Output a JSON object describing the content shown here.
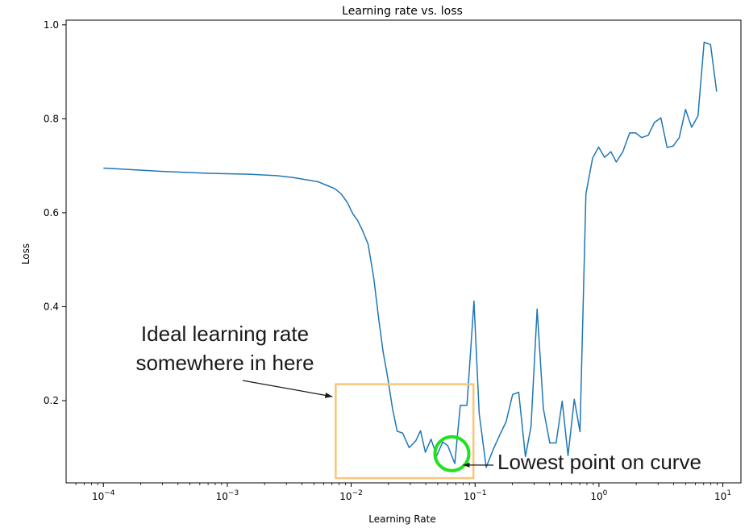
{
  "chart_data": {
    "type": "line",
    "title": "Learning rate vs. loss",
    "xlabel": "Learning Rate",
    "ylabel": "Loss",
    "xscale": "log",
    "xlim": [
      5e-05,
      14
    ],
    "ylim": [
      0.025,
      1.01
    ],
    "grid": false,
    "x_ticks": [
      {
        "value": 0.0001,
        "base": "10",
        "exp": "−4"
      },
      {
        "value": 0.001,
        "base": "10",
        "exp": "−3"
      },
      {
        "value": 0.01,
        "base": "10",
        "exp": "−2"
      },
      {
        "value": 0.1,
        "base": "10",
        "exp": "−1"
      },
      {
        "value": 1,
        "base": "10",
        "exp": "0"
      },
      {
        "value": 10,
        "base": "10",
        "exp": "1"
      }
    ],
    "y_ticks": [
      {
        "value": 0.2,
        "label": "0.2"
      },
      {
        "value": 0.4,
        "label": "0.4"
      },
      {
        "value": 0.6,
        "label": "0.6"
      },
      {
        "value": 0.8,
        "label": "0.8"
      },
      {
        "value": 1.0,
        "label": "1.0"
      }
    ],
    "series": [
      {
        "color": "#1f77b4",
        "points": [
          [
            0.0001,
            0.695
          ],
          [
            0.0003,
            0.688
          ],
          [
            0.0007,
            0.684
          ],
          [
            0.0015,
            0.682
          ],
          [
            0.0025,
            0.679
          ],
          [
            0.0034,
            0.675
          ],
          [
            0.0044,
            0.67
          ],
          [
            0.0054,
            0.666
          ],
          [
            0.0064,
            0.658
          ],
          [
            0.0074,
            0.651
          ],
          [
            0.0083,
            0.64
          ],
          [
            0.0093,
            0.622
          ],
          [
            0.0103,
            0.598
          ],
          [
            0.0113,
            0.583
          ],
          [
            0.0123,
            0.563
          ],
          [
            0.0137,
            0.533
          ],
          [
            0.0152,
            0.462
          ],
          [
            0.0167,
            0.373
          ],
          [
            0.0181,
            0.304
          ],
          [
            0.0196,
            0.253
          ],
          [
            0.0216,
            0.182
          ],
          [
            0.0235,
            0.135
          ],
          [
            0.026,
            0.131
          ],
          [
            0.0294,
            0.1
          ],
          [
            0.0333,
            0.115
          ],
          [
            0.0363,
            0.136
          ],
          [
            0.0397,
            0.09
          ],
          [
            0.0441,
            0.118
          ],
          [
            0.049,
            0.083
          ],
          [
            0.0549,
            0.112
          ],
          [
            0.0603,
            0.104
          ],
          [
            0.0686,
            0.066
          ],
          [
            0.076,
            0.19
          ],
          [
            0.086,
            0.19
          ],
          [
            0.098,
            0.412
          ],
          [
            0.108,
            0.172
          ],
          [
            0.123,
            0.058
          ],
          [
            0.14,
            0.096
          ],
          [
            0.159,
            0.128
          ],
          [
            0.178,
            0.155
          ],
          [
            0.201,
            0.213
          ],
          [
            0.225,
            0.218
          ],
          [
            0.255,
            0.081
          ],
          [
            0.283,
            0.145
          ],
          [
            0.317,
            0.395
          ],
          [
            0.356,
            0.183
          ],
          [
            0.401,
            0.11
          ],
          [
            0.451,
            0.11
          ],
          [
            0.505,
            0.199
          ],
          [
            0.563,
            0.083
          ],
          [
            0.632,
            0.203
          ],
          [
            0.703,
            0.134
          ],
          [
            0.785,
            0.64
          ],
          [
            0.888,
            0.716
          ],
          [
            0.993,
            0.74
          ],
          [
            1.11,
            0.718
          ],
          [
            1.25,
            0.73
          ],
          [
            1.38,
            0.708
          ],
          [
            1.56,
            0.73
          ],
          [
            1.77,
            0.77
          ],
          [
            1.98,
            0.77
          ],
          [
            2.21,
            0.76
          ],
          [
            2.5,
            0.765
          ],
          [
            2.8,
            0.792
          ],
          [
            3.16,
            0.802
          ],
          [
            3.55,
            0.739
          ],
          [
            3.97,
            0.742
          ],
          [
            4.45,
            0.76
          ],
          [
            5.0,
            0.82
          ],
          [
            5.6,
            0.782
          ],
          [
            6.3,
            0.806
          ],
          [
            7.06,
            0.963
          ],
          [
            7.96,
            0.958
          ],
          [
            8.91,
            0.858
          ]
        ]
      }
    ],
    "annotations": [
      {
        "text_lines": [
          "Ideal learning rate",
          "somewhere in here"
        ],
        "shape": "rectangle",
        "color": "#f9c57a",
        "x_range": [
          0.0075,
          0.097
        ],
        "y_range": [
          0.035,
          0.235
        ]
      },
      {
        "text_lines": [
          "Lowest point on curve"
        ],
        "shape": "circle",
        "color": "#22e022",
        "center": [
          0.065,
          0.087
        ]
      }
    ]
  }
}
